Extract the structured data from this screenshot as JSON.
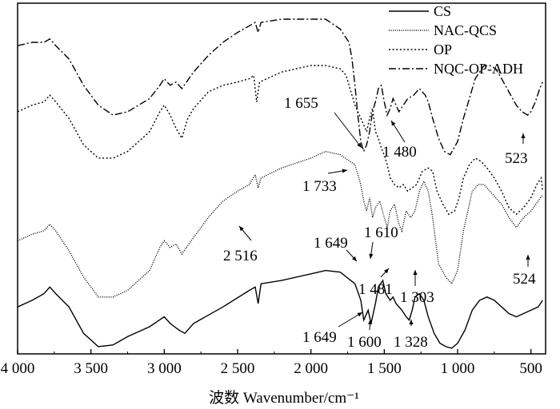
{
  "chart_data": {
    "type": "line",
    "title": "",
    "xlabel": "波数 Wavenumber/cm⁻¹",
    "ylabel": "",
    "xlim": [
      4000,
      400
    ],
    "ylim": [
      0,
      100
    ],
    "x_reversed": true,
    "grid": false,
    "legend_position": "top-right",
    "xticks": [
      4000,
      3500,
      3000,
      2500,
      2000,
      1500,
      1000,
      500
    ],
    "xtick_labels": [
      "4 000",
      "3 500",
      "3 000",
      "2 500",
      "2 000",
      "1 500",
      "1 000",
      "500"
    ],
    "series": [
      {
        "name": "CS",
        "dash": "solid",
        "points": [
          [
            4000,
            13
          ],
          [
            3900,
            15
          ],
          [
            3820,
            17
          ],
          [
            3780,
            19
          ],
          [
            3740,
            17
          ],
          [
            3650,
            13
          ],
          [
            3550,
            5
          ],
          [
            3450,
            1
          ],
          [
            3350,
            1.5
          ],
          [
            3250,
            4
          ],
          [
            3100,
            7
          ],
          [
            3000,
            10
          ],
          [
            2960,
            8
          ],
          [
            2900,
            6
          ],
          [
            2860,
            5
          ],
          [
            2800,
            8
          ],
          [
            2600,
            13
          ],
          [
            2420,
            18
          ],
          [
            2380,
            19
          ],
          [
            2360,
            14
          ],
          [
            2340,
            20
          ],
          [
            2200,
            21
          ],
          [
            2000,
            23
          ],
          [
            1900,
            24
          ],
          [
            1800,
            23.5
          ],
          [
            1700,
            20
          ],
          [
            1660,
            15
          ],
          [
            1640,
            9
          ],
          [
            1610,
            12
          ],
          [
            1590,
            8
          ],
          [
            1560,
            14
          ],
          [
            1540,
            19
          ],
          [
            1510,
            21
          ],
          [
            1490,
            17
          ],
          [
            1460,
            15
          ],
          [
            1440,
            16
          ],
          [
            1420,
            14
          ],
          [
            1380,
            12
          ],
          [
            1350,
            10
          ],
          [
            1330,
            9
          ],
          [
            1310,
            12
          ],
          [
            1290,
            16
          ],
          [
            1260,
            17
          ],
          [
            1230,
            15
          ],
          [
            1200,
            10
          ],
          [
            1160,
            5
          ],
          [
            1120,
            2
          ],
          [
            1080,
            1
          ],
          [
            1040,
            0.5
          ],
          [
            1000,
            2
          ],
          [
            950,
            6
          ],
          [
            900,
            12
          ],
          [
            850,
            15
          ],
          [
            800,
            16
          ],
          [
            750,
            15
          ],
          [
            700,
            13
          ],
          [
            650,
            11
          ],
          [
            600,
            10
          ],
          [
            550,
            11
          ],
          [
            500,
            12
          ],
          [
            450,
            13
          ],
          [
            420,
            15
          ]
        ]
      },
      {
        "name": "NAC-QCS",
        "dash": "fine-dot",
        "points": [
          [
            4000,
            33
          ],
          [
            3900,
            35
          ],
          [
            3820,
            36
          ],
          [
            3780,
            38
          ],
          [
            3740,
            36
          ],
          [
            3650,
            30
          ],
          [
            3550,
            22
          ],
          [
            3450,
            16
          ],
          [
            3350,
            16
          ],
          [
            3250,
            18
          ],
          [
            3100,
            24
          ],
          [
            3030,
            31
          ],
          [
            3000,
            33
          ],
          [
            2960,
            31
          ],
          [
            2920,
            32
          ],
          [
            2880,
            29
          ],
          [
            2800,
            34
          ],
          [
            2700,
            40
          ],
          [
            2600,
            45
          ],
          [
            2500,
            48
          ],
          [
            2420,
            50
          ],
          [
            2380,
            53
          ],
          [
            2360,
            49
          ],
          [
            2340,
            52
          ],
          [
            2200,
            55
          ],
          [
            2000,
            58
          ],
          [
            1900,
            60
          ],
          [
            1800,
            59
          ],
          [
            1700,
            56
          ],
          [
            1660,
            50
          ],
          [
            1640,
            45
          ],
          [
            1620,
            42
          ],
          [
            1600,
            46
          ],
          [
            1580,
            40
          ],
          [
            1560,
            43
          ],
          [
            1530,
            45
          ],
          [
            1500,
            40
          ],
          [
            1480,
            37
          ],
          [
            1460,
            42
          ],
          [
            1430,
            44
          ],
          [
            1400,
            38
          ],
          [
            1380,
            36
          ],
          [
            1350,
            42
          ],
          [
            1320,
            40
          ],
          [
            1290,
            42
          ],
          [
            1260,
            48
          ],
          [
            1230,
            51
          ],
          [
            1200,
            48
          ],
          [
            1170,
            40
          ],
          [
            1130,
            26
          ],
          [
            1080,
            22
          ],
          [
            1040,
            20
          ],
          [
            1000,
            24
          ],
          [
            960,
            36
          ],
          [
            930,
            42
          ],
          [
            900,
            48
          ],
          [
            860,
            50
          ],
          [
            820,
            50
          ],
          [
            780,
            48
          ],
          [
            740,
            46
          ],
          [
            700,
            44
          ],
          [
            650,
            40
          ],
          [
            600,
            37
          ],
          [
            550,
            40
          ],
          [
            500,
            42
          ],
          [
            450,
            45
          ],
          [
            420,
            47
          ]
        ]
      },
      {
        "name": "OP",
        "dash": "dotted",
        "points": [
          [
            4000,
            72
          ],
          [
            3900,
            74
          ],
          [
            3820,
            75
          ],
          [
            3780,
            77
          ],
          [
            3740,
            75
          ],
          [
            3650,
            70
          ],
          [
            3550,
            62
          ],
          [
            3450,
            58
          ],
          [
            3350,
            58
          ],
          [
            3250,
            60
          ],
          [
            3100,
            66
          ],
          [
            3030,
            72
          ],
          [
            3000,
            74
          ],
          [
            2960,
            71
          ],
          [
            2920,
            67
          ],
          [
            2880,
            64
          ],
          [
            2840,
            70
          ],
          [
            2800,
            73
          ],
          [
            2700,
            78
          ],
          [
            2600,
            80
          ],
          [
            2500,
            81
          ],
          [
            2420,
            82
          ],
          [
            2390,
            83
          ],
          [
            2370,
            75
          ],
          [
            2350,
            81
          ],
          [
            2200,
            84
          ],
          [
            2000,
            86
          ],
          [
            1900,
            86
          ],
          [
            1800,
            85
          ],
          [
            1760,
            83
          ],
          [
            1740,
            80
          ],
          [
            1720,
            77
          ],
          [
            1700,
            74
          ],
          [
            1680,
            72
          ],
          [
            1660,
            70
          ],
          [
            1640,
            68
          ],
          [
            1620,
            66
          ],
          [
            1600,
            70
          ],
          [
            1580,
            73
          ],
          [
            1560,
            66
          ],
          [
            1540,
            64
          ],
          [
            1520,
            61
          ],
          [
            1500,
            59
          ],
          [
            1480,
            56
          ],
          [
            1460,
            52
          ],
          [
            1430,
            50
          ],
          [
            1400,
            49
          ],
          [
            1370,
            50
          ],
          [
            1340,
            48
          ],
          [
            1310,
            49
          ],
          [
            1280,
            50
          ],
          [
            1240,
            54
          ],
          [
            1200,
            55
          ],
          [
            1170,
            54
          ],
          [
            1140,
            48
          ],
          [
            1100,
            44
          ],
          [
            1060,
            41
          ],
          [
            1020,
            42
          ],
          [
            990,
            46
          ],
          [
            960,
            52
          ],
          [
            920,
            56
          ],
          [
            880,
            58
          ],
          [
            840,
            57
          ],
          [
            800,
            55
          ],
          [
            750,
            52
          ],
          [
            700,
            48
          ],
          [
            650,
            43
          ],
          [
            600,
            41
          ],
          [
            550,
            43
          ],
          [
            500,
            46
          ],
          [
            460,
            50
          ],
          [
            430,
            52
          ],
          [
            420,
            48
          ]
        ]
      },
      {
        "name": "NQC-OP-ADH",
        "dash": "dash-dot",
        "points": [
          [
            4000,
            92
          ],
          [
            3900,
            93
          ],
          [
            3820,
            93
          ],
          [
            3780,
            94
          ],
          [
            3740,
            92
          ],
          [
            3650,
            88
          ],
          [
            3550,
            80
          ],
          [
            3450,
            74
          ],
          [
            3350,
            71
          ],
          [
            3250,
            72
          ],
          [
            3100,
            76
          ],
          [
            3030,
            80
          ],
          [
            3000,
            82
          ],
          [
            2960,
            80
          ],
          [
            2920,
            81
          ],
          [
            2880,
            79
          ],
          [
            2800,
            84
          ],
          [
            2700,
            89
          ],
          [
            2600,
            93
          ],
          [
            2500,
            96
          ],
          [
            2420,
            98
          ],
          [
            2380,
            99
          ],
          [
            2360,
            96
          ],
          [
            2340,
            99
          ],
          [
            2200,
            100
          ],
          [
            2000,
            100
          ],
          [
            1900,
            100
          ],
          [
            1800,
            97
          ],
          [
            1740,
            93
          ],
          [
            1720,
            88
          ],
          [
            1700,
            80
          ],
          [
            1680,
            71
          ],
          [
            1660,
            63
          ],
          [
            1640,
            60
          ],
          [
            1620,
            62
          ],
          [
            1600,
            66
          ],
          [
            1580,
            72
          ],
          [
            1560,
            75
          ],
          [
            1540,
            79
          ],
          [
            1520,
            80
          ],
          [
            1500,
            75
          ],
          [
            1480,
            71
          ],
          [
            1460,
            73
          ],
          [
            1440,
            76
          ],
          [
            1420,
            74
          ],
          [
            1400,
            72
          ],
          [
            1370,
            74
          ],
          [
            1340,
            76
          ],
          [
            1300,
            77
          ],
          [
            1260,
            79
          ],
          [
            1220,
            77
          ],
          [
            1200,
            75
          ],
          [
            1170,
            70
          ],
          [
            1130,
            64
          ],
          [
            1090,
            60
          ],
          [
            1050,
            59
          ],
          [
            1000,
            63
          ],
          [
            960,
            70
          ],
          [
            920,
            76
          ],
          [
            880,
            82
          ],
          [
            850,
            84
          ],
          [
            820,
            86
          ],
          [
            780,
            86
          ],
          [
            740,
            85
          ],
          [
            700,
            82
          ],
          [
            650,
            78
          ],
          [
            600,
            74
          ],
          [
            560,
            72
          ],
          [
            523,
            71
          ],
          [
            500,
            72
          ],
          [
            470,
            75
          ],
          [
            440,
            79
          ],
          [
            420,
            81
          ]
        ]
      }
    ],
    "annotations": [
      {
        "text": "1 655",
        "x": 1655
      },
      {
        "text": "1 480",
        "x": 1480
      },
      {
        "text": "523",
        "x": 523
      },
      {
        "text": "1 733",
        "x": 1733
      },
      {
        "text": "2 516",
        "x": 2516
      },
      {
        "text": "1 649",
        "x": 1649
      },
      {
        "text": "1 610",
        "x": 1610
      },
      {
        "text": "524",
        "x": 524
      },
      {
        "text": "1 481",
        "x": 1481
      },
      {
        "text": "1 303",
        "x": 1303
      },
      {
        "text": "1 649",
        "x": 1649
      },
      {
        "text": "1 600",
        "x": 1600
      },
      {
        "text": "1 328",
        "x": 1328
      }
    ]
  }
}
